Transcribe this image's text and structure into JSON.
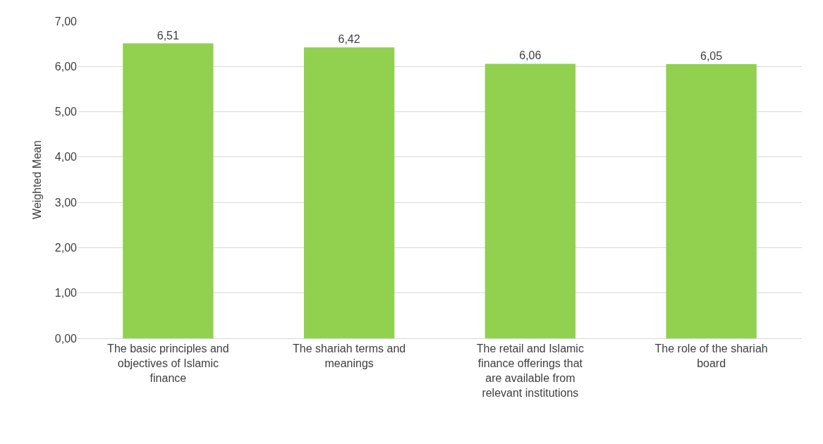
{
  "chart_data": {
    "type": "bar",
    "ylabel": "Weighted Mean",
    "categories": [
      "The basic principles and objectives of Islamic finance",
      "The shariah terms and meanings",
      "The retail and Islamic finance offerings that are available from relevant institutions",
      "The role of the shariah board"
    ],
    "values": [
      6.51,
      6.42,
      6.06,
      6.05
    ],
    "value_labels": [
      "6,51",
      "6,42",
      "6,06",
      "6,05"
    ],
    "color": "#92d050",
    "ylim": [
      0,
      7
    ],
    "yticks": [
      {
        "value": 0,
        "label": "0,00"
      },
      {
        "value": 1,
        "label": "1,00"
      },
      {
        "value": 2,
        "label": "2,00"
      },
      {
        "value": 3,
        "label": "3,00"
      },
      {
        "value": 4,
        "label": "4,00"
      },
      {
        "value": 5,
        "label": "5,00"
      },
      {
        "value": 6,
        "label": "6,00"
      },
      {
        "value": 7,
        "label": "7,00"
      }
    ],
    "grid": "y"
  }
}
